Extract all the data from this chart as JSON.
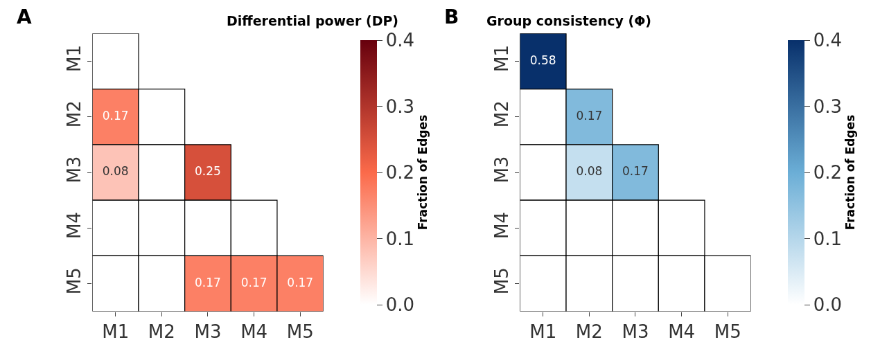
{
  "chart_data": [
    {
      "type": "heatmap",
      "title": "Differential power (DP)",
      "annotations": [
        "A"
      ],
      "clabel": "Fraction of Edges",
      "categories": [
        "M1",
        "M2",
        "M3",
        "M4",
        "M5"
      ],
      "y_categories": [
        "M1",
        "M2",
        "M3",
        "M4",
        "M5"
      ],
      "cells": [
        [
          0,
          null,
          null,
          null,
          null
        ],
        [
          0.17,
          0,
          null,
          null,
          null
        ],
        [
          0.08,
          0,
          0.25,
          null,
          null
        ],
        [
          0,
          0,
          0,
          0,
          null
        ],
        [
          0,
          0,
          0.17,
          0.17,
          0.17
        ]
      ],
      "cell_labels": [
        [
          null,
          null,
          null,
          null,
          null
        ],
        [
          "0.17",
          null,
          null,
          null,
          null
        ],
        [
          "0.08",
          null,
          "0.25",
          null,
          null
        ],
        [
          null,
          null,
          null,
          null,
          null
        ],
        [
          null,
          null,
          "0.17",
          "0.17",
          "0.17"
        ]
      ],
      "colors": [
        "#ffffff",
        "#fb6a4a",
        "#67000d"
      ],
      "clim": [
        0,
        0.4
      ],
      "cticks": [
        {
          "value": 0,
          "label": "0.0"
        },
        0.1,
        0.2,
        0.3,
        0.4
      ]
    },
    {
      "type": "heatmap",
      "title": "Group consistency (Φ)",
      "annotations": [
        "B"
      ],
      "clabel": "Fraction of Edges",
      "categories": [
        "M1",
        "M2",
        "M3",
        "M4",
        "M5"
      ],
      "y_categories": [
        "M1",
        "M2",
        "M3",
        "M4",
        "M5"
      ],
      "cells": [
        [
          0.58,
          null,
          null,
          null,
          null
        ],
        [
          0,
          0.17,
          null,
          null,
          null
        ],
        [
          0,
          0.08,
          0.17,
          null,
          null
        ],
        [
          0,
          0,
          0,
          0,
          null
        ],
        [
          0,
          0,
          0,
          0,
          0
        ]
      ],
      "cell_labels": [
        [
          "0.58",
          null,
          null,
          null,
          null
        ],
        [
          null,
          "0.17",
          null,
          null,
          null
        ],
        [
          null,
          "0.08",
          "0.17",
          null,
          null
        ],
        [
          null,
          null,
          null,
          null,
          null
        ],
        [
          null,
          null,
          null,
          null,
          null
        ]
      ],
      "colors": [
        "#ffffff",
        "#6baed6",
        "#08306b"
      ],
      "clim": [
        0,
        0.4
      ],
      "cticks": [
        {
          "value": 0,
          "label": "0.0"
        },
        0.1,
        0.2,
        0.3,
        0.4
      ]
    }
  ]
}
